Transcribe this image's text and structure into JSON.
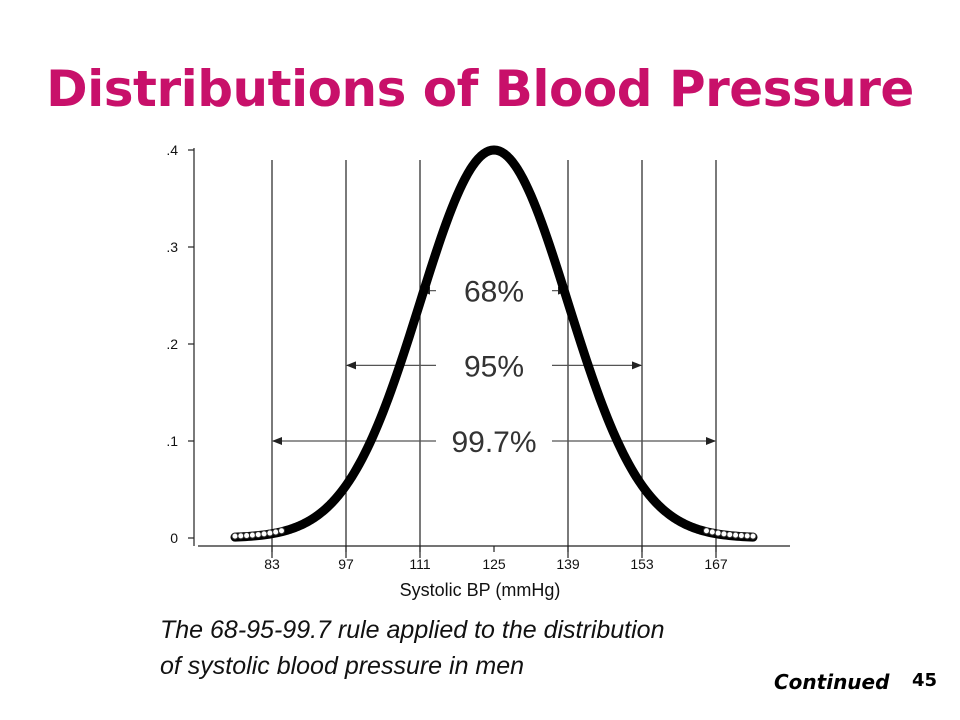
{
  "slide": {
    "title": "Distributions of Blood Pressure",
    "title_color": "#c8106a",
    "caption_line1": "The 68-95-99.7 rule applied to the distribution",
    "caption_line2": "of systolic blood pressure in men",
    "continued": "Continued",
    "page_number": "45"
  },
  "chart_data": {
    "type": "line",
    "title": "",
    "xlabel": "Systolic BP (mmHg)",
    "ylabel": "",
    "xlim": [
      69,
      181
    ],
    "ylim": [
      0,
      0.4
    ],
    "mean": 125,
    "sd": 14,
    "x_ticks": [
      "83",
      "97",
      "111",
      "125",
      "139",
      "153",
      "167"
    ],
    "y_ticks": [
      "0",
      ".1",
      ".2",
      ".3",
      ".4"
    ],
    "grid": false,
    "vertical_lines": [
      83,
      97,
      111,
      139,
      153,
      167
    ],
    "curve_color": "#000000",
    "intervals": [
      {
        "label": "68%",
        "from": 111,
        "to": 139,
        "y": 0.255
      },
      {
        "label": "95%",
        "from": 97,
        "to": 153,
        "y": 0.178
      },
      {
        "label": "99.7%",
        "from": 83,
        "to": 167,
        "y": 0.1
      }
    ]
  }
}
